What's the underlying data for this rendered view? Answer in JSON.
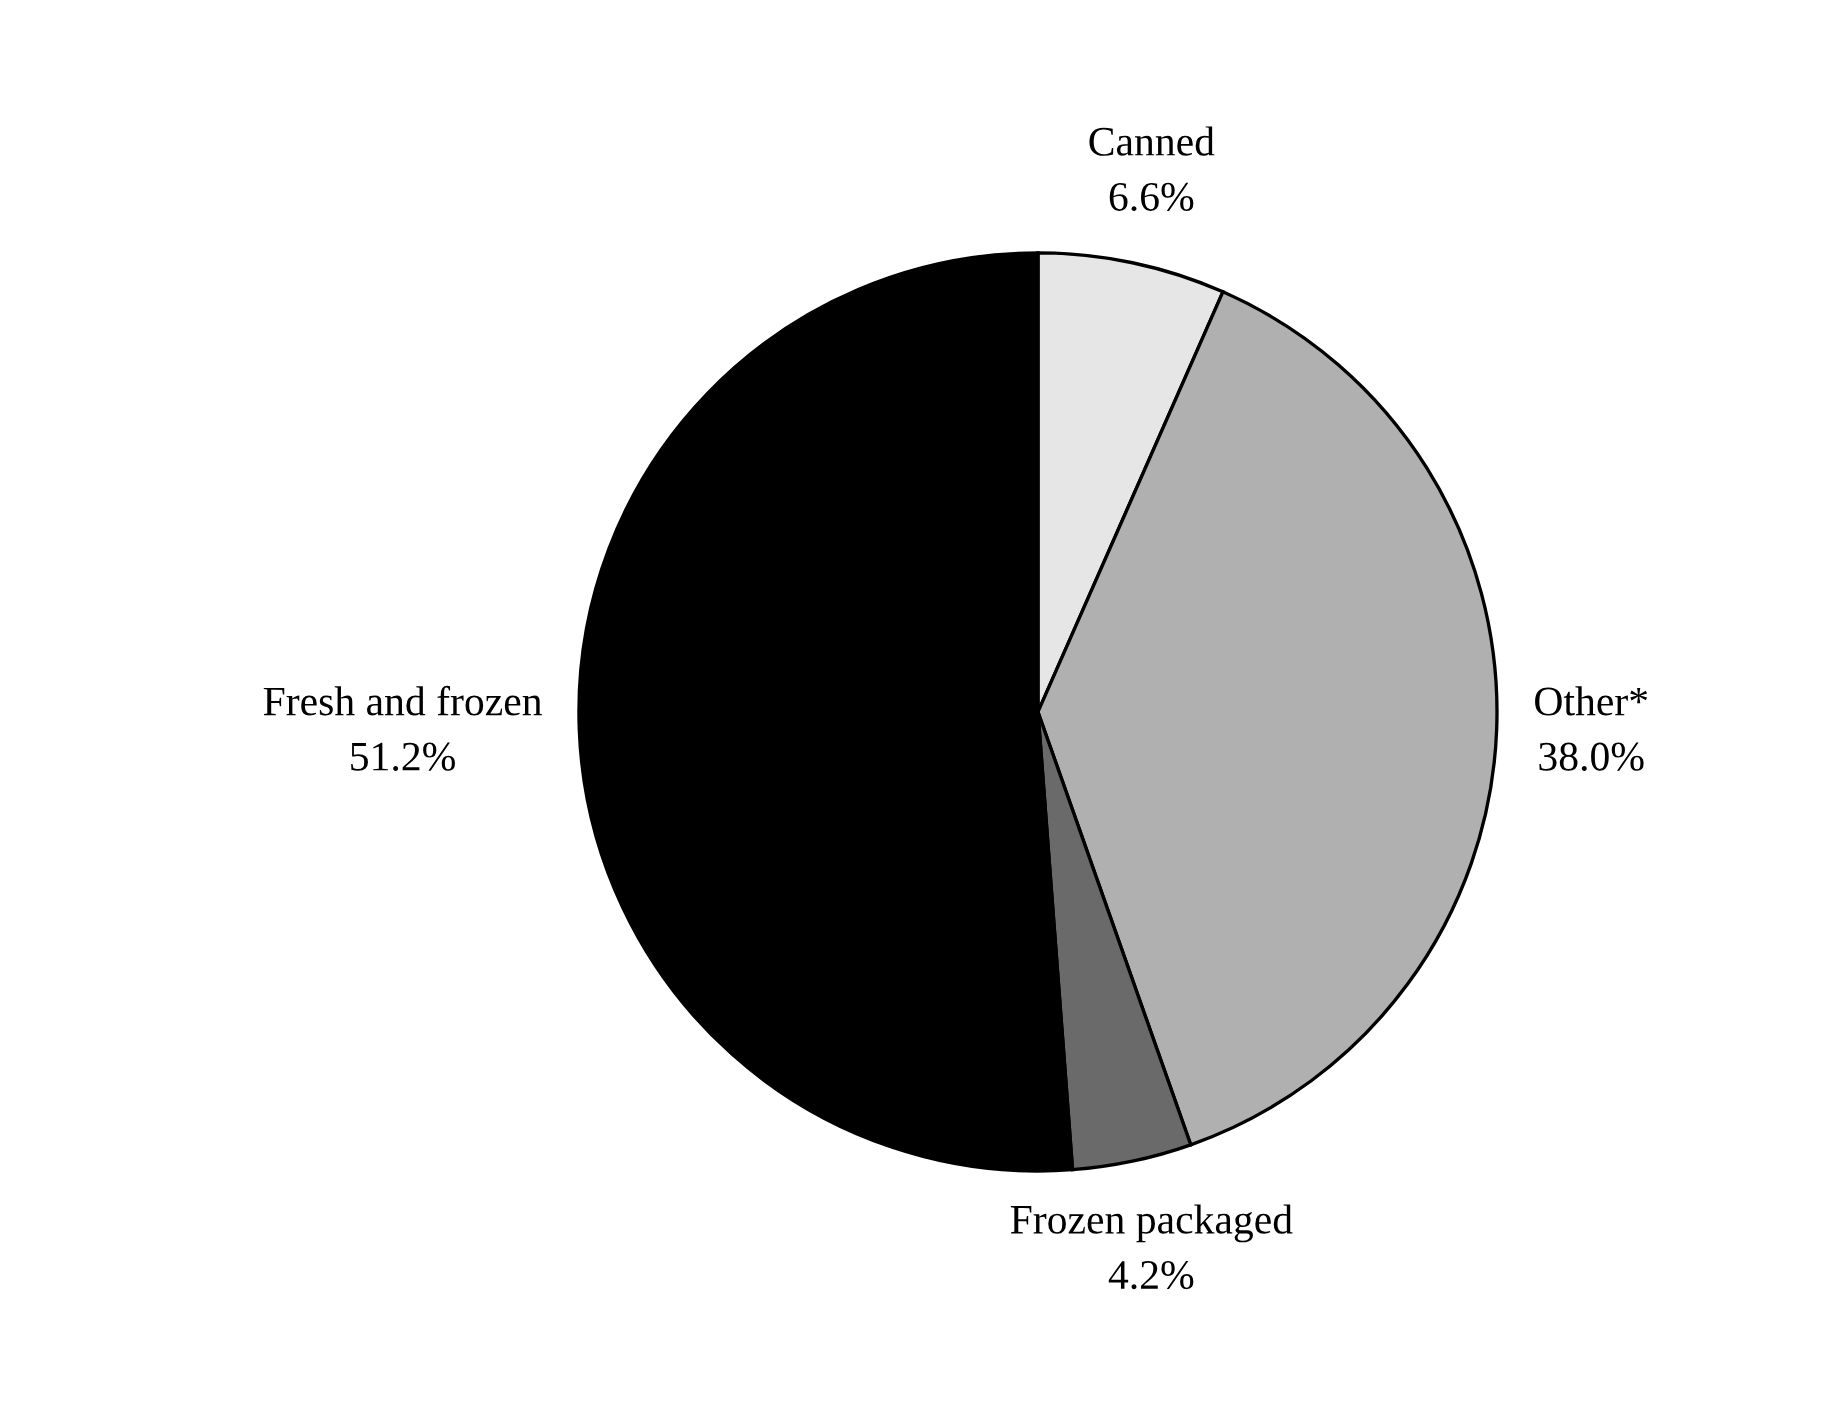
{
  "chart_data": {
    "type": "pie",
    "categories": [
      "Canned",
      "Other*",
      "Frozen packaged",
      "Fresh and frozen"
    ],
    "values": [
      6.6,
      38.0,
      4.2,
      51.2
    ],
    "value_labels": [
      "6.6%",
      "38.0%",
      "4.2%",
      "51.2%"
    ],
    "colors": [
      "#e6e6e6",
      "#b0b0b0",
      "#6a6a6a",
      "#000000"
    ],
    "legend": false
  }
}
